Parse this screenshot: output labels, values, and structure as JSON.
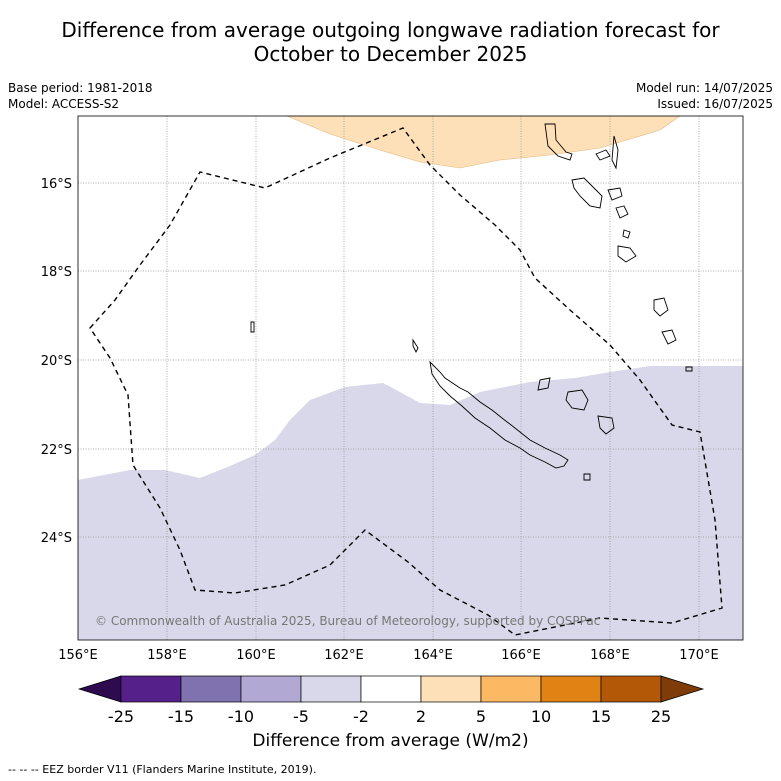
{
  "title_line1": "Difference from average outgoing longwave radiation forecast for",
  "title_line2": "October to December 2025",
  "meta_left": [
    "Base period: 1981-2018",
    "Model: ACCESS-S2"
  ],
  "meta_right": [
    "Model run: 14/07/2025",
    "Issued: 16/07/2025"
  ],
  "copyright": "© Commonwealth of Australia 2025, Bureau of Meteorology, supported by COSPPac",
  "x_ticks": [
    "156°E",
    "158°E",
    "160°E",
    "162°E",
    "164°E",
    "166°E",
    "168°E",
    "170°E"
  ],
  "y_ticks": [
    "16°S",
    "18°S",
    "20°S",
    "22°S",
    "24°S"
  ],
  "colorbar": {
    "labels": [
      "-25",
      "-15",
      "-10",
      "-5",
      "-2",
      "2",
      "5",
      "10",
      "15",
      "25"
    ],
    "colors": [
      "#2d0b4e",
      "#56208a",
      "#7f72ae",
      "#b1a9d3",
      "#d8d8ea",
      "#ffffff",
      "#fde0b8",
      "#fdb863",
      "#e08214",
      "#b35806",
      "#7f3b08"
    ],
    "title": "Difference from average (W/m2)"
  },
  "footer": "--  --  -- EEZ border V11 (Flanders Marine Institute, 2019)."
}
